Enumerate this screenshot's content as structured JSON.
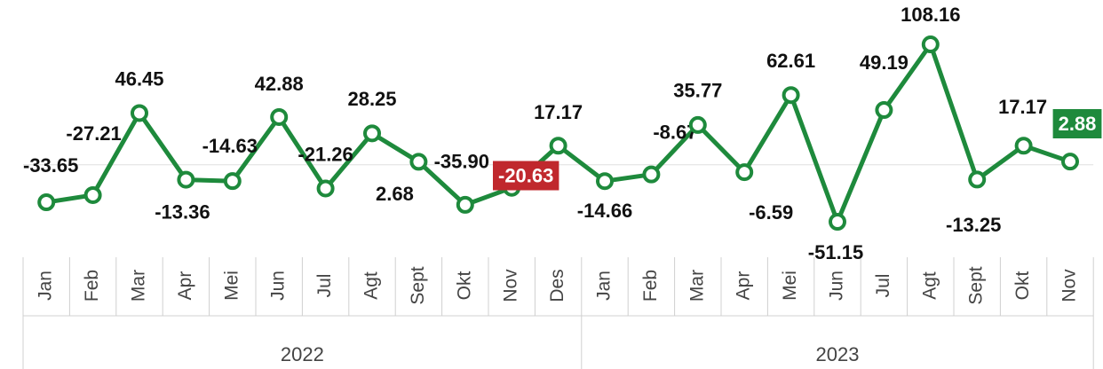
{
  "chart_data": {
    "type": "line",
    "groups": [
      {
        "name": "2022",
        "categories": [
          "Jan",
          "Feb",
          "Mar",
          "Apr",
          "Mei",
          "Jun",
          "Jul",
          "Agt",
          "Sept",
          "Okt",
          "Nov",
          "Des"
        ]
      },
      {
        "name": "2023",
        "categories": [
          "Jan",
          "Feb",
          "Mar",
          "Apr",
          "Mei",
          "Jun",
          "Jul",
          "Agt",
          "Sept",
          "Okt",
          "Nov"
        ]
      }
    ],
    "series": [
      {
        "color": "#1e8a3c",
        "values": [
          -33.65,
          -27.21,
          46.45,
          -13.36,
          -14.63,
          42.88,
          -21.26,
          28.25,
          2.68,
          -35.9,
          -20.63,
          17.17,
          -14.66,
          -8.67,
          35.77,
          -6.59,
          62.61,
          -51.15,
          49.19,
          108.16,
          -13.25,
          17.17,
          2.88
        ],
        "value_labels": [
          "-33.65",
          "-27.21",
          "46.45",
          "-13.36",
          "-14.63",
          "42.88",
          "-21.26",
          "28.25",
          "2.68",
          "-35.90",
          "-20.63",
          "17.17",
          "-14.66",
          "-8.67",
          "35.77",
          "-6.59",
          "62.61",
          "-51.15",
          "49.19",
          "108.16",
          "-13.25",
          "17.17",
          "2.88"
        ],
        "value_label_colors": [
          null,
          null,
          null,
          null,
          null,
          null,
          null,
          null,
          null,
          null,
          "#c0282d",
          null,
          null,
          null,
          null,
          null,
          null,
          null,
          null,
          null,
          null,
          null,
          "#1e8a3c"
        ]
      }
    ],
    "ylim": [
      -83,
      148
    ]
  }
}
